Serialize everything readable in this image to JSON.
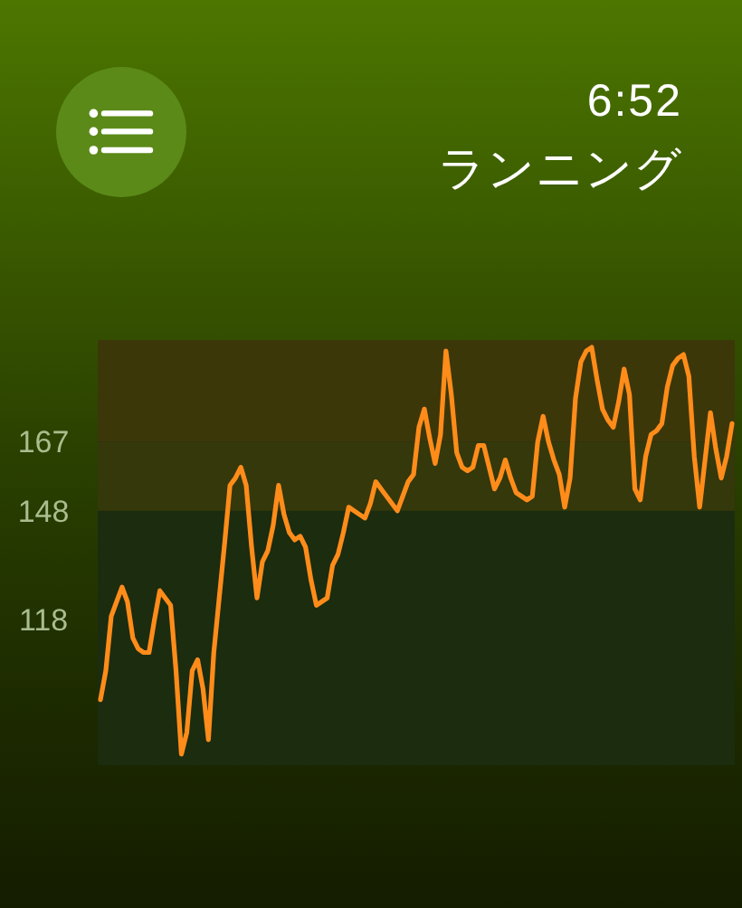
{
  "chart_data": {
    "type": "line",
    "title": "ランニング",
    "annotations": [
      "6:52"
    ],
    "categories": [
      null,
      null,
      null,
      null,
      null,
      null,
      null,
      null,
      null,
      null,
      null,
      null,
      null,
      null,
      null,
      null,
      null,
      null,
      null,
      null,
      null,
      null,
      null,
      null,
      null,
      null,
      null,
      null,
      null,
      null,
      null,
      null,
      null,
      null,
      null,
      null,
      null,
      null,
      null,
      null,
      null,
      null,
      null,
      null,
      null,
      null,
      null,
      null,
      null,
      null,
      null,
      null,
      null,
      null,
      null,
      null,
      null,
      null,
      null,
      null,
      null,
      null,
      null,
      null,
      null,
      null,
      null,
      null,
      null,
      null,
      null,
      null,
      null,
      null,
      null,
      null,
      null,
      null,
      null,
      null,
      null,
      null,
      null,
      null,
      null,
      null,
      null,
      null,
      null,
      null,
      null,
      null,
      null,
      null,
      null,
      null,
      null,
      null,
      null,
      null,
      null,
      null,
      null,
      null,
      null,
      null,
      null,
      null,
      null,
      null,
      null,
      null,
      null,
      null,
      null,
      null,
      null,
      null
    ],
    "series": [
      {
        "color": "#ff8c1a",
        "values": [
          96,
          104,
          119,
          123,
          127,
          123,
          113,
          110,
          109,
          109,
          118,
          126,
          124,
          122,
          104,
          81,
          87,
          104,
          107,
          99,
          85,
          109,
          124,
          139,
          155,
          157,
          160,
          155,
          138,
          124,
          134,
          137,
          144,
          155,
          147,
          142,
          140,
          141,
          138,
          129,
          122,
          123,
          124,
          133,
          136,
          142,
          149,
          148,
          147,
          146,
          150,
          156,
          154,
          152,
          150,
          148,
          152,
          156,
          158,
          171,
          176,
          168,
          161,
          169,
          192,
          180,
          164,
          160,
          159,
          160,
          166,
          166,
          160,
          154,
          157,
          162,
          157,
          153,
          152,
          151,
          152,
          167,
          174,
          167,
          162,
          158,
          149,
          157,
          179,
          189,
          192,
          193,
          184,
          176,
          173,
          171,
          178,
          187,
          180,
          154,
          151,
          163,
          169,
          170,
          172,
          182,
          188,
          190,
          191,
          185,
          163,
          149,
          162,
          175,
          165,
          157,
          163,
          172
        ]
      }
    ],
    "ylim": [
      78,
      195
    ],
    "yticks": [
      118,
      148,
      167
    ],
    "tick_labels": "y",
    "bands": [
      {
        "axis": "y",
        "from": 148,
        "to": 167,
        "color": "#34380b"
      },
      {
        "axis": "y",
        "from": 167,
        "to": 195,
        "color": "#3c3709"
      }
    ]
  }
}
